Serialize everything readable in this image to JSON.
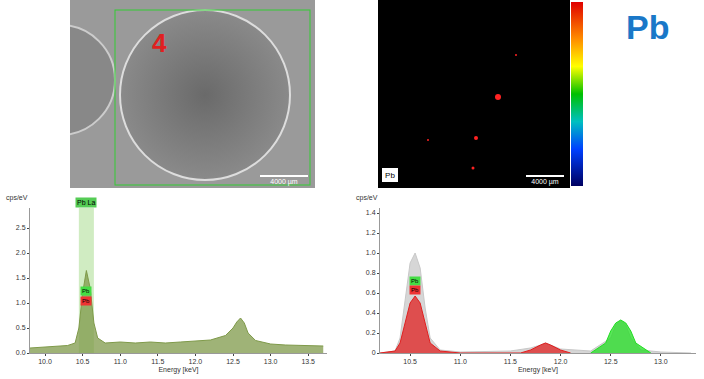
{
  "panels": {
    "sem_image": {
      "label": "4",
      "scale_bar": "4000 µm"
    },
    "map_image": {
      "element": "Pb",
      "scale_bar": "4000 µm"
    },
    "title": "Pb"
  },
  "chart_data": [
    {
      "type": "area",
      "y_label": "cps/eV",
      "x_label": "Energy [keV]",
      "x": [
        9.8,
        10.0,
        10.2,
        10.3,
        10.4,
        10.45,
        10.5,
        10.55,
        10.6,
        10.65,
        10.7,
        10.8,
        11.0,
        11.2,
        11.4,
        11.6,
        11.8,
        12.0,
        12.2,
        12.4,
        12.5,
        12.55,
        12.6,
        12.65,
        12.7,
        12.8,
        13.0,
        13.2,
        13.4,
        13.7
      ],
      "series": [
        {
          "color": "#7f9a4a",
          "values": [
            0.1,
            0.12,
            0.14,
            0.15,
            0.2,
            0.5,
            1.2,
            1.65,
            1.3,
            0.6,
            0.3,
            0.2,
            0.22,
            0.2,
            0.22,
            0.2,
            0.22,
            0.24,
            0.26,
            0.35,
            0.5,
            0.62,
            0.7,
            0.6,
            0.4,
            0.25,
            0.18,
            0.16,
            0.15,
            0.14
          ]
        }
      ],
      "highlight": {
        "x0": 10.45,
        "x1": 10.65,
        "label": "Pb La"
      },
      "annotations": [
        {
          "x": 10.55,
          "y": 1.25,
          "text": "Pb"
        },
        {
          "x": 10.55,
          "y": 1.05,
          "text": "Pb"
        }
      ],
      "xlim": [
        9.8,
        13.75
      ],
      "xticks": [
        {
          "value": 10,
          "label": "10.0"
        },
        10.5,
        {
          "value": 11,
          "label": "11.0"
        },
        11.5,
        {
          "value": 12,
          "label": "12.0"
        },
        12.5,
        {
          "value": 13,
          "label": "13.0"
        },
        13.5
      ],
      "ylim": [
        0,
        2.9
      ],
      "yticks": [
        {
          "value": 0,
          "label": "0.0"
        },
        0.5,
        {
          "value": 1,
          "label": "1.0"
        },
        1.5,
        {
          "value": 2,
          "label": "2.0"
        },
        2.5
      ],
      "grid": false
    },
    {
      "type": "area",
      "y_label": "cps/eV",
      "x_label": "Energy [keV]",
      "series": [
        {
          "color": "#c8c8c8",
          "x": [
            10.2,
            10.35,
            10.4,
            10.45,
            10.5,
            10.55,
            10.6,
            10.65,
            10.7,
            10.8,
            11.0,
            11.5,
            11.7,
            11.8,
            11.85,
            11.9,
            12.0,
            12.3,
            12.5,
            12.55,
            12.6,
            12.65,
            12.7,
            12.8,
            13.0,
            13.3
          ],
          "values": [
            0,
            0.02,
            0.15,
            0.5,
            0.9,
            1.0,
            0.85,
            0.45,
            0.15,
            0.03,
            0.01,
            0.02,
            0.05,
            0.08,
            0.1,
            0.08,
            0.04,
            0.02,
            0.15,
            0.28,
            0.33,
            0.28,
            0.15,
            0.03,
            0.01,
            0
          ]
        },
        {
          "color": "#e02020",
          "x": [
            10.2,
            10.35,
            10.4,
            10.45,
            10.5,
            10.55,
            10.6,
            10.65,
            10.7,
            10.8,
            11.0,
            11.6,
            11.7,
            11.8,
            11.85,
            11.9,
            12.0,
            12.1
          ],
          "values": [
            0,
            0.02,
            0.1,
            0.3,
            0.5,
            0.57,
            0.5,
            0.3,
            0.1,
            0.02,
            0,
            0,
            0.03,
            0.08,
            0.1,
            0.08,
            0.03,
            0
          ]
        },
        {
          "color": "#22dd22",
          "x": [
            12.3,
            12.45,
            12.5,
            12.55,
            12.6,
            12.65,
            12.7,
            12.75,
            12.9
          ],
          "values": [
            0,
            0.1,
            0.22,
            0.3,
            0.33,
            0.3,
            0.22,
            0.1,
            0
          ]
        }
      ],
      "annotations": [
        {
          "x": 10.55,
          "y": 0.72,
          "text": "Pb"
        },
        {
          "x": 10.55,
          "y": 0.63,
          "text": "Pb"
        }
      ],
      "xlim": [
        10.2,
        13.35
      ],
      "xticks": [
        10.5,
        {
          "value": 11,
          "label": "11.0"
        },
        11.5,
        {
          "value": 12,
          "label": "12.0"
        },
        12.5,
        {
          "value": 13,
          "label": "13.0"
        }
      ],
      "ylim": [
        0,
        1.45
      ],
      "yticks": [
        0,
        0.2,
        0.4,
        0.6,
        0.8,
        {
          "value": 1,
          "label": "1.0"
        },
        1.2,
        1.4
      ],
      "grid": false
    }
  ]
}
